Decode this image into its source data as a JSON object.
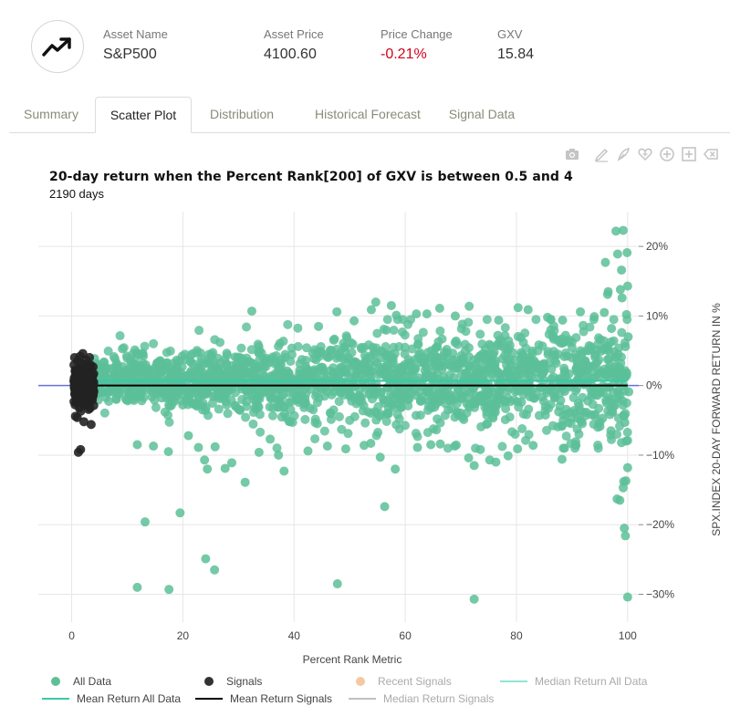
{
  "header": {
    "icon": "trending-up-icon",
    "stats": [
      {
        "label": "Asset Name",
        "value": "S&P500"
      },
      {
        "label": "Asset Price",
        "value": "4100.60"
      },
      {
        "label": "Price Change",
        "value": "-0.21%"
      },
      {
        "label": "GXV",
        "value": "15.84"
      }
    ]
  },
  "tabs": [
    {
      "label": "Summary"
    },
    {
      "label": "Scatter Plot",
      "active": true
    },
    {
      "label": "Distribution"
    },
    {
      "label": "Historical Forecast"
    },
    {
      "label": "Signal Data"
    }
  ],
  "toolbar": [
    "camera-icon",
    "draw-line-icon",
    "draw-freehand-icon",
    "heart-icon",
    "zoom-in-icon",
    "autoscale-icon",
    "erase-icon"
  ],
  "colors": {
    "all_data": "#5cbf98",
    "signals": "#222222",
    "recent_signals": "#f4c9a0",
    "median_all": "#8fe6d4",
    "mean_all": "#3cc8a8",
    "mean_signals": "#000000",
    "median_signals": "#c0c0c0",
    "zero_line": "#6670d8",
    "negative": "#d0021b"
  },
  "chart_data": {
    "type": "scatter",
    "title": "20-day return when the Percent Rank[200] of GXV is between 0.5 and 4",
    "subtitle": "2190 days",
    "xlabel": "Percent Rank Metric",
    "ylabel": "SPX.INDEX 20-DAY FORWARD RETURN IN %",
    "xlim": [
      -6,
      102
    ],
    "ylim": [
      -34,
      25
    ],
    "xticks": [
      0,
      20,
      40,
      60,
      80,
      100
    ],
    "yticks": [
      {
        "value": 20,
        "label": "20%"
      },
      {
        "value": 10,
        "label": "10%"
      },
      {
        "value": 0,
        "label": "0%"
      },
      {
        "value": -10,
        "label": "−10%"
      },
      {
        "value": -20,
        "label": "−20%"
      },
      {
        "value": -30,
        "label": "−30%"
      }
    ],
    "grid": true,
    "y_axis_side": "right",
    "legend_position": "bottom",
    "series": [
      {
        "name": "All Data",
        "kind": "scatter",
        "color": "#5cbf98",
        "outliers": [
          [
            11.8,
            -8.5
          ],
          [
            13.2,
            -19.6
          ],
          [
            14.7,
            -8.7
          ],
          [
            17.4,
            -9.5
          ],
          [
            19.5,
            -18.3
          ],
          [
            21.0,
            -7.2
          ],
          [
            22.8,
            -8.9
          ],
          [
            23.9,
            -10.7
          ],
          [
            24.4,
            -12.0
          ],
          [
            25.8,
            -8.8
          ],
          [
            27.6,
            -11.9
          ],
          [
            28.8,
            -11.1
          ],
          [
            31.2,
            -13.9
          ],
          [
            33.7,
            -9.6
          ],
          [
            35.7,
            -7.7
          ],
          [
            37.2,
            -10.0
          ],
          [
            38.2,
            -12.3
          ],
          [
            42.5,
            -9.4
          ],
          [
            46.0,
            -8.7
          ],
          [
            49.3,
            -9.1
          ],
          [
            52.6,
            -8.6
          ],
          [
            53.8,
            -8.3
          ],
          [
            55.5,
            -10.3
          ],
          [
            56.3,
            -17.4
          ],
          [
            58.2,
            -12.0
          ],
          [
            62.2,
            -8.9
          ],
          [
            64.6,
            -8.5
          ],
          [
            66.3,
            -8.4
          ],
          [
            68.9,
            -8.7
          ],
          [
            71.4,
            -10.4
          ],
          [
            72.4,
            -11.5
          ],
          [
            73.5,
            -9.2
          ],
          [
            75.2,
            -10.7
          ],
          [
            76.3,
            -11.0
          ],
          [
            78.5,
            -10.1
          ],
          [
            80.2,
            -9.1
          ],
          [
            83.0,
            -8.6
          ],
          [
            88.2,
            -10.6
          ],
          [
            90.7,
            -8.6
          ],
          [
            11.8,
            -29.0
          ],
          [
            17.5,
            -29.3
          ],
          [
            24.1,
            -24.9
          ],
          [
            25.7,
            -26.5
          ],
          [
            47.8,
            -28.5
          ],
          [
            72.4,
            -30.7
          ],
          [
            32.4,
            10.7
          ],
          [
            44.4,
            8.5
          ],
          [
            47.7,
            10.6
          ],
          [
            50.8,
            9.3
          ],
          [
            53.9,
            10.9
          ],
          [
            54.7,
            12.0
          ],
          [
            57.5,
            11.5
          ],
          [
            58.4,
            10.1
          ],
          [
            62.0,
            10.3
          ],
          [
            63.9,
            10.3
          ],
          [
            66.2,
            11.1
          ],
          [
            69.0,
            10.0
          ],
          [
            71.5,
            11.4
          ],
          [
            76.8,
            9.4
          ],
          [
            80.3,
            11.2
          ],
          [
            82.1,
            10.9
          ],
          [
            85.6,
            9.8
          ],
          [
            88.3,
            9.4
          ],
          [
            91.5,
            10.6
          ],
          [
            96.5,
            13.5
          ],
          [
            100.0,
            14.3
          ],
          [
            94.0,
            9.9
          ],
          [
            94.5,
            5.1
          ],
          [
            94.9,
            1.3
          ],
          [
            95.2,
            -1.0
          ],
          [
            95.5,
            -4.7
          ],
          [
            95.8,
            10.5
          ],
          [
            96.0,
            17.7
          ],
          [
            96.4,
            13.1
          ],
          [
            96.7,
            2.0
          ],
          [
            97.0,
            -6.5
          ],
          [
            97.3,
            -3.8
          ],
          [
            97.6,
            0.5
          ],
          [
            97.9,
            22.2
          ],
          [
            98.2,
            18.9
          ],
          [
            98.4,
            -1.9
          ],
          [
            98.6,
            2.5
          ],
          [
            98.9,
            16.6
          ],
          [
            99.2,
            22.3
          ],
          [
            99.5,
            -5.3
          ],
          [
            99.8,
            10.2
          ],
          [
            99.9,
            19.1
          ],
          [
            100.1,
            7.0
          ],
          [
            100.0,
            -7.9
          ],
          [
            99.6,
            5.6
          ],
          [
            99.0,
            12.6
          ],
          [
            98.7,
            13.8
          ],
          [
            98.9,
            -8.2
          ],
          [
            100.0,
            -11.8
          ],
          [
            99.7,
            -13.7
          ],
          [
            99.3,
            -13.8
          ],
          [
            99.2,
            -14.7
          ],
          [
            99.4,
            -20.5
          ],
          [
            99.6,
            -21.6
          ],
          [
            98.1,
            -16.3
          ],
          [
            98.6,
            -16.5
          ],
          [
            100.0,
            -30.4
          ],
          [
            99.1,
            -2.2
          ],
          [
            98.3,
            4.5
          ],
          [
            97.1,
            8.2
          ],
          [
            95.1,
            6.6
          ],
          [
            96.2,
            -2.5
          ],
          [
            100.2,
            -0.9
          ]
        ]
      },
      {
        "name": "Signals",
        "kind": "scatter",
        "color": "#222222",
        "outliers": [
          [
            1.2,
            -9.6
          ],
          [
            1.6,
            -9.2
          ],
          [
            2.0,
            4.6
          ],
          [
            2.6,
            3.7
          ],
          [
            1.0,
            -4.6
          ],
          [
            3.5,
            -5.6
          ],
          [
            2.2,
            -5.2
          ]
        ]
      },
      {
        "name": "Recent Signals",
        "kind": "scatter",
        "color": "#f4c9a0",
        "hidden": true
      },
      {
        "name": "Median Return All Data",
        "kind": "line",
        "color": "#8fe6d4",
        "y": 0.8,
        "hidden": true
      },
      {
        "name": "Mean Return All Data",
        "kind": "line",
        "color": "#3cc8a8",
        "y": 0.7
      },
      {
        "name": "Mean Return Signals",
        "kind": "line",
        "color": "#000000",
        "y": 0.0
      },
      {
        "name": "Median Return Signals",
        "kind": "line",
        "color": "#c0c0c0",
        "hidden": true
      }
    ]
  }
}
